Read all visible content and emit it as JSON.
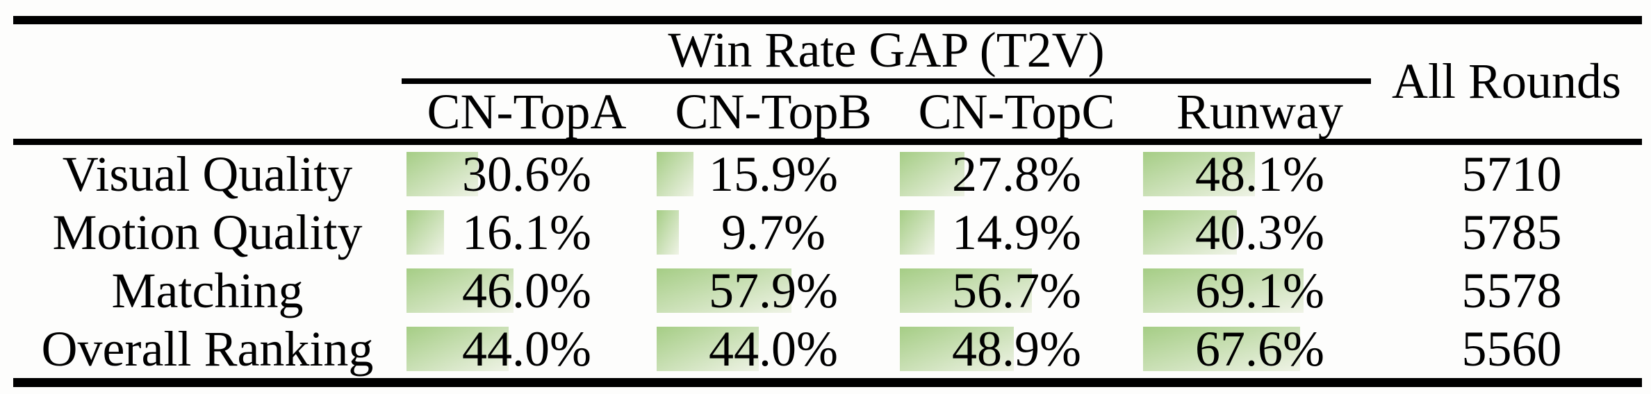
{
  "table": {
    "title": "Win Rate GAP (T2V)",
    "all_rounds_header": "All Rounds",
    "group_columns": [
      "CN-TopA",
      "CN-TopB",
      "CN-TopC",
      "Runway"
    ],
    "rows": [
      {
        "label": "Visual Quality",
        "cells": [
          "30.6%",
          "15.9%",
          "27.8%",
          "48.1%"
        ],
        "all_rounds": "5710"
      },
      {
        "label": "Motion Quality",
        "cells": [
          "16.1%",
          "9.7%",
          "14.9%",
          "40.3%"
        ],
        "all_rounds": "5785"
      },
      {
        "label": "Matching",
        "cells": [
          "46.0%",
          "57.9%",
          "56.7%",
          "69.1%"
        ],
        "all_rounds": "5578"
      },
      {
        "label": "Overall Ranking",
        "cells": [
          "44.0%",
          "44.0%",
          "48.9%",
          "67.6%"
        ],
        "all_rounds": "5560"
      }
    ],
    "bar_color_start": "#a5cd85",
    "bar_color_end": "#eff3e6",
    "rule_color": "#000000"
  }
}
